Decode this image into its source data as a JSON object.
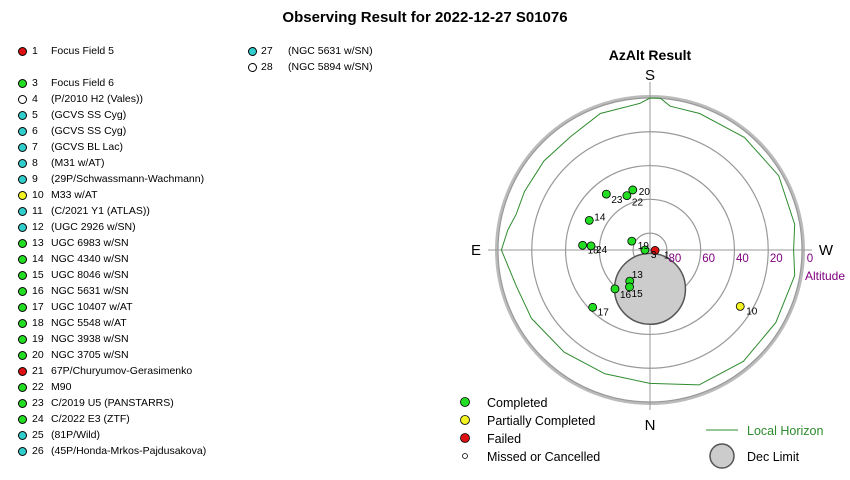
{
  "title": "Observing Result for 2022-12-27 S01076",
  "colors": {
    "completed": "#22dd22",
    "partial": "#f2f222",
    "failed": "#dd1111",
    "missed": "#ffffff",
    "skipped_cyan": "#33cccc",
    "horizon": "#2e8b2e",
    "dec_limit": "#cccccc",
    "altitude_text": "#800080"
  },
  "targets": [
    {
      "num": "1",
      "name": "Focus Field 5",
      "status": "failed"
    },
    {
      "num": "3",
      "name": "Focus Field 6",
      "status": "completed"
    },
    {
      "num": "4",
      "name": "(P/2010 H2 (Vales))",
      "status": "missed"
    },
    {
      "num": "5",
      "name": "(GCVS SS Cyg)",
      "status": "skipped_cyan"
    },
    {
      "num": "6",
      "name": "(GCVS SS Cyg)",
      "status": "skipped_cyan"
    },
    {
      "num": "7",
      "name": "(GCVS BL Lac)",
      "status": "skipped_cyan"
    },
    {
      "num": "8",
      "name": "(M31 w/AT)",
      "status": "skipped_cyan"
    },
    {
      "num": "9",
      "name": "(29P/Schwassmann-Wachmann)",
      "status": "skipped_cyan"
    },
    {
      "num": "10",
      "name": "M33 w/AT",
      "status": "partial"
    },
    {
      "num": "11",
      "name": "(C/2021 Y1 (ATLAS))",
      "status": "skipped_cyan"
    },
    {
      "num": "12",
      "name": "(UGC 2926 w/SN)",
      "status": "skipped_cyan"
    },
    {
      "num": "13",
      "name": "UGC 6983 w/SN",
      "status": "completed"
    },
    {
      "num": "14",
      "name": "NGC 4340 w/SN",
      "status": "completed"
    },
    {
      "num": "15",
      "name": "UGC 8046 w/SN",
      "status": "completed"
    },
    {
      "num": "16",
      "name": "NGC 5631 w/SN",
      "status": "completed"
    },
    {
      "num": "17",
      "name": "UGC 10407 w/AT",
      "status": "completed"
    },
    {
      "num": "18",
      "name": "NGC 5548 w/AT",
      "status": "completed"
    },
    {
      "num": "19",
      "name": "NGC 3938 w/SN",
      "status": "completed"
    },
    {
      "num": "20",
      "name": "NGC 3705 w/SN",
      "status": "completed"
    },
    {
      "num": "21",
      "name": "67P/Churyumov-Gerasimenko",
      "status": "failed"
    },
    {
      "num": "22",
      "name": "M90",
      "status": "completed"
    },
    {
      "num": "23",
      "name": "C/2019 U5 (PANSTARRS)",
      "status": "completed"
    },
    {
      "num": "24",
      "name": "C/2022 E3 (ZTF)",
      "status": "completed"
    },
    {
      "num": "25",
      "name": "(81P/Wild)",
      "status": "skipped_cyan"
    },
    {
      "num": "26",
      "name": "(45P/Honda-Mrkos-Pajdusakova)",
      "status": "skipped_cyan"
    },
    {
      "num": "27",
      "name": "(NGC 5631 w/SN)",
      "status": "skipped_cyan"
    },
    {
      "num": "28",
      "name": "(NGC 5894 w/SN)",
      "status": "missed"
    }
  ],
  "chart_data": {
    "type": "scatter",
    "title": "AzAlt Result",
    "projection": "polar-azimuth-altitude",
    "altitude_rings": [
      0,
      20,
      40,
      60,
      80
    ],
    "altitude_ticks": [
      "80",
      "60",
      "40",
      "20",
      "0"
    ],
    "altitude_axis_label": "Altitude",
    "directions": {
      "top": "S",
      "bottom": "N",
      "left": "E",
      "right": "W"
    },
    "points": [
      {
        "label": "1",
        "az": 85,
        "alt": 87,
        "status": "failed"
      },
      {
        "label": "3",
        "az": 270,
        "alt": 87,
        "status": "completed"
      },
      {
        "label": "10",
        "az": 58,
        "alt": 27,
        "status": "partial"
      },
      {
        "label": "13",
        "az": 327,
        "alt": 68,
        "status": "completed"
      },
      {
        "label": "14",
        "az": 244,
        "alt": 50,
        "status": "completed"
      },
      {
        "label": "15",
        "az": 331,
        "alt": 65,
        "status": "completed"
      },
      {
        "label": "16",
        "az": 318,
        "alt": 59,
        "status": "completed"
      },
      {
        "label": "17",
        "az": 315,
        "alt": 42,
        "status": "completed"
      },
      {
        "label": "18",
        "az": 266,
        "alt": 50,
        "status": "completed"
      },
      {
        "label": "19",
        "az": 244,
        "alt": 78,
        "status": "completed"
      },
      {
        "label": "20",
        "az": 196,
        "alt": 53,
        "status": "completed"
      },
      {
        "label": "22",
        "az": 203,
        "alt": 55,
        "status": "completed"
      },
      {
        "label": "23",
        "az": 218,
        "alt": 48,
        "status": "completed"
      },
      {
        "label": "24",
        "az": 266,
        "alt": 55,
        "status": "completed"
      }
    ],
    "dec_limit": {
      "az": 0,
      "alt": 67,
      "radius_deg": 21
    },
    "local_horizon_alt": [
      {
        "az": 0,
        "alt": 11
      },
      {
        "az": 20,
        "alt": 5
      },
      {
        "az": 40,
        "alt": 4
      },
      {
        "az": 60,
        "alt": 4
      },
      {
        "az": 80,
        "alt": 3
      },
      {
        "az": 90,
        "alt": 5
      },
      {
        "az": 100,
        "alt": 3
      },
      {
        "az": 120,
        "alt": 2
      },
      {
        "az": 140,
        "alt": 3
      },
      {
        "az": 160,
        "alt": 4
      },
      {
        "az": 172,
        "alt": 4
      },
      {
        "az": 176,
        "alt": 0
      },
      {
        "az": 180,
        "alt": 0
      },
      {
        "az": 184,
        "alt": 3
      },
      {
        "az": 200,
        "alt": 4
      },
      {
        "az": 215,
        "alt": 8
      },
      {
        "az": 230,
        "alt": 8
      },
      {
        "az": 245,
        "alt": 8
      },
      {
        "az": 255,
        "alt": 8
      },
      {
        "az": 262,
        "alt": 5
      },
      {
        "az": 270,
        "alt": 2
      },
      {
        "az": 285,
        "alt": 8
      },
      {
        "az": 300,
        "alt": 9
      },
      {
        "az": 320,
        "alt": 11
      },
      {
        "az": 340,
        "alt": 12
      },
      {
        "az": 360,
        "alt": 11
      }
    ],
    "legend": [
      {
        "label": "Completed",
        "status": "completed"
      },
      {
        "label": "Partially Completed",
        "status": "partial"
      },
      {
        "label": "Failed",
        "status": "failed"
      },
      {
        "label": "Missed or Cancelled",
        "status": "missed"
      }
    ],
    "legend_horizon": "Local Horizon",
    "legend_dec_limit": "Dec Limit"
  }
}
